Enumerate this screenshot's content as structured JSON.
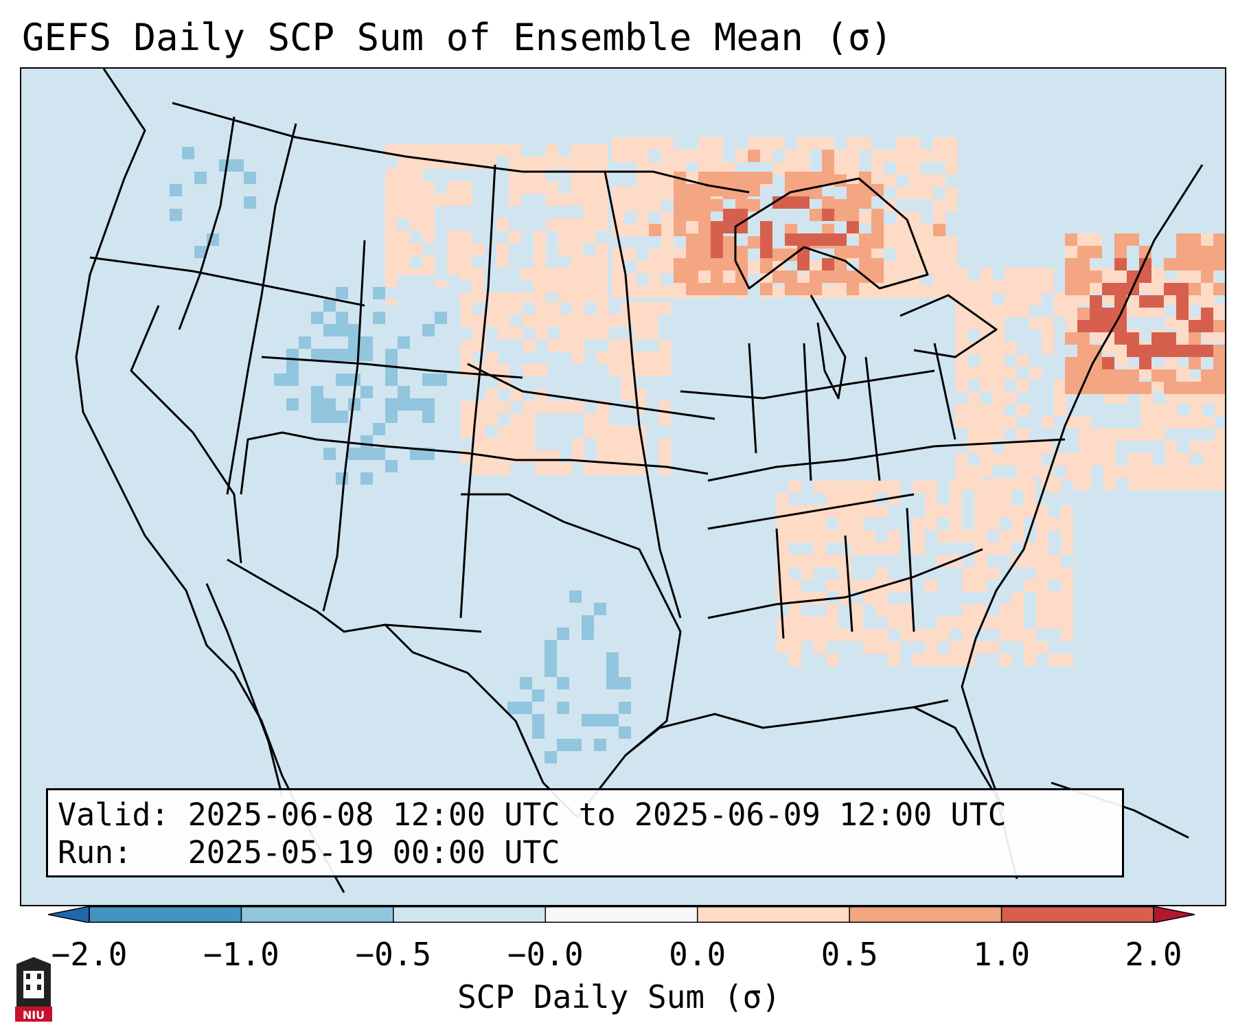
{
  "title": "GEFS Daily SCP Sum of Ensemble Mean (σ)",
  "info_box": {
    "valid_line": "Valid: 2025-06-08 12:00 UTC to 2025-06-09 12:00 UTC",
    "run_line": "Run:   2025-05-19 00:00 UTC"
  },
  "colorbar": {
    "label": "SCP Daily Sum (σ)",
    "ticks": [
      "−2.0",
      "−1.0",
      "−0.5",
      "−0.0",
      "0.0",
      "0.5",
      "1.0",
      "2.0"
    ],
    "bins": [
      {
        "from": -2.0,
        "to": -1.0,
        "color": "#4393c3"
      },
      {
        "from": -1.0,
        "to": -0.5,
        "color": "#92c5de"
      },
      {
        "from": -0.5,
        "to": 0.0,
        "color": "#d1e5f0"
      },
      {
        "from": 0.0,
        "to": 0.0,
        "color": "#f7f7f7"
      },
      {
        "from": 0.0,
        "to": 0.5,
        "color": "#fddbc7"
      },
      {
        "from": 0.5,
        "to": 1.0,
        "color": "#f4a582"
      },
      {
        "from": 1.0,
        "to": 2.0,
        "color": "#d6604d"
      }
    ],
    "extend_low_color": "#2166ac",
    "extend_high_color": "#b2182b"
  },
  "logo": {
    "text": "NIU",
    "color": "#c8102e"
  },
  "map_fields": {
    "background_value": -0.3,
    "regions": [
      {
        "name": "great-lakes",
        "value": 1.3
      },
      {
        "name": "northeast",
        "value": 1.4
      },
      {
        "name": "upper-midwest",
        "value": 0.6
      },
      {
        "name": "mid-atlantic",
        "value": 0.3
      },
      {
        "name": "southeast",
        "value": 0.2
      },
      {
        "name": "northern-plains",
        "value": 0.4
      },
      {
        "name": "central-plains",
        "value": 0.2
      },
      {
        "name": "intermountain-west",
        "value": -0.7
      },
      {
        "name": "west-texas",
        "value": -0.7
      },
      {
        "name": "pacific-northwest",
        "value": -0.6
      }
    ]
  }
}
